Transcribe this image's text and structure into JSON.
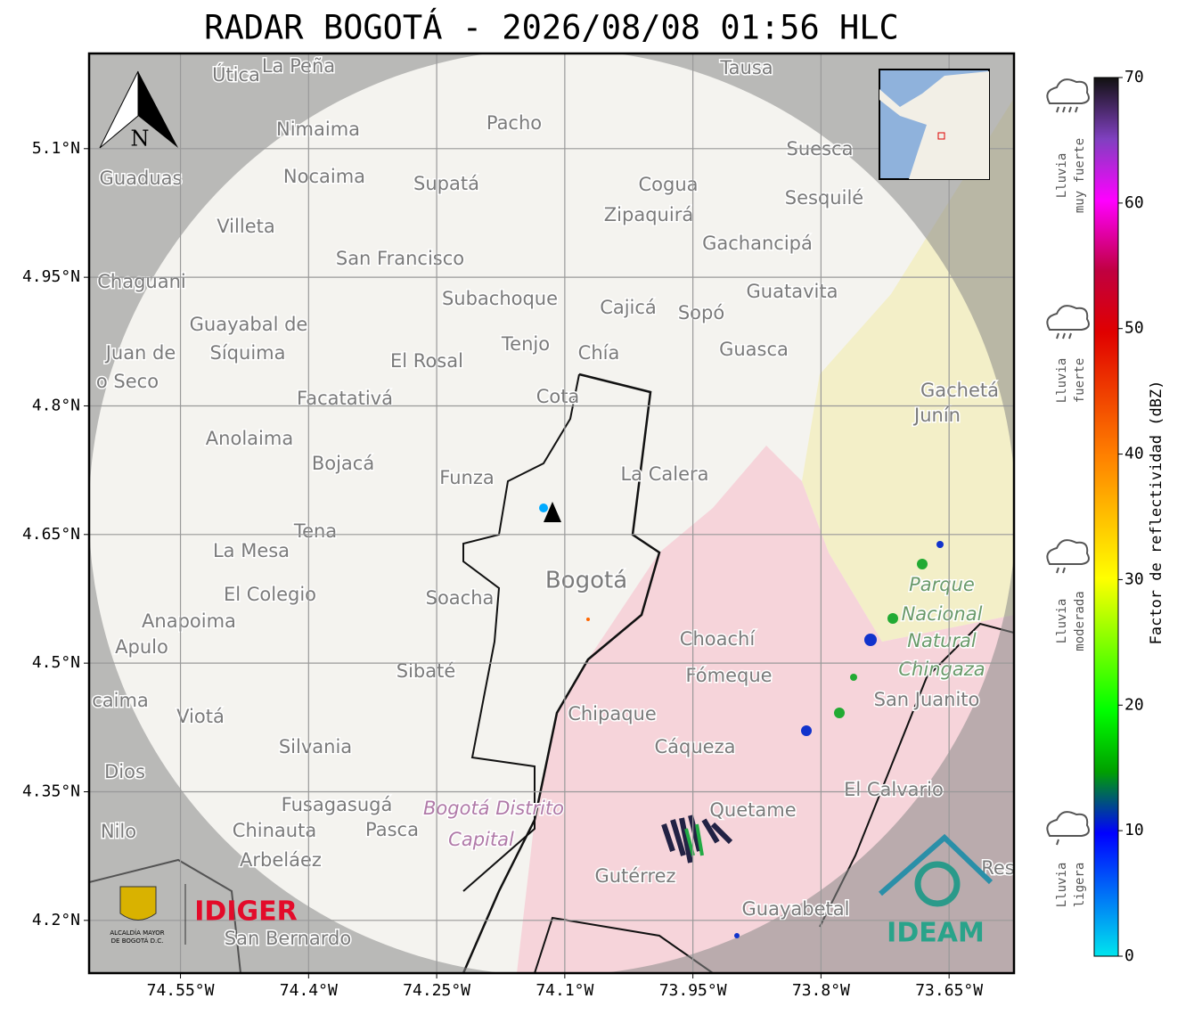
{
  "header": {
    "title": "RADAR BOGOTÁ - 2026/08/08 01:56 HLC"
  },
  "map": {
    "xlim": [
      -74.657,
      -73.574
    ],
    "ylim": [
      4.1385,
      5.211
    ],
    "xticks": [
      {
        "value": -74.55,
        "label": "74.55°W"
      },
      {
        "value": -74.4,
        "label": "74.4°W"
      },
      {
        "value": -74.25,
        "label": "74.25°W"
      },
      {
        "value": -74.1,
        "label": "74.1°W"
      },
      {
        "value": -73.95,
        "label": "73.95°W"
      },
      {
        "value": -73.8,
        "label": "73.8°W"
      },
      {
        "value": -73.65,
        "label": "73.65°W"
      }
    ],
    "yticks": [
      {
        "value": 5.1,
        "label": "5.1°N"
      },
      {
        "value": 4.95,
        "label": "4.95°N"
      },
      {
        "value": 4.8,
        "label": "4.8°N"
      },
      {
        "value": 4.65,
        "label": "4.65°N"
      },
      {
        "value": 4.5,
        "label": "4.5°N"
      },
      {
        "value": 4.35,
        "label": "4.35°N"
      },
      {
        "value": 4.2,
        "label": "4.2°N"
      }
    ],
    "grid": true,
    "north": "N",
    "places": [
      "Útica",
      "La Peña",
      "Tausa",
      "Pacho",
      "Nimaima",
      "Suesca",
      "Guaduas",
      "Nocaima",
      "Supatá",
      "Cogua",
      "Sesquilé",
      "Zipaquirá",
      "Villeta",
      "Gachancipá",
      "San Francisco",
      "Chaguani",
      "Guatavita",
      "Subachoque",
      "Cajicá",
      "Sopó",
      "Guayabal de",
      "Síquima",
      "Juan de",
      "Tenjo",
      "Chía",
      "Guasca",
      "El Rosal",
      "o Seco",
      "Gachetá",
      "Facatativá",
      "Cota",
      "Junín",
      "Anolaima",
      "Bojacá",
      "Funza",
      "La Calera",
      "Tena",
      "La Mesa",
      "Bogotá",
      "Parque",
      "El Colegio",
      "Soacha",
      "Nacional",
      "Anapoima",
      "Apulo",
      "Natural",
      "Choachí",
      "Chingaza",
      "Fómeque",
      "Sibaté",
      "caima",
      "San Juanito",
      "Viotá",
      "Chipaque",
      "Cáqueza",
      "Silvania",
      "Dios",
      "El Calvario",
      "Fusagasugá",
      "Bogotá Distrito",
      "Quetame",
      "Nilo",
      "Chinauta",
      "Pasca",
      "Capital",
      "Arbeláez",
      "Gutérrez",
      "Res",
      "Guayabetal",
      "San Bernardo"
    ]
  },
  "colorbar": {
    "label": "Factor de reflectividad (dBZ)",
    "lim": [
      0,
      70
    ],
    "ticks": [
      0,
      10,
      20,
      30,
      40,
      50,
      60,
      70
    ],
    "categories": [
      [
        "Lluvia",
        "muy fuerte"
      ],
      [
        "Lluvia",
        "fuerte"
      ],
      [
        "Lluvia",
        "moderada"
      ],
      [
        "Lluvia",
        "ligera"
      ]
    ]
  },
  "logos": {
    "alcaldia": [
      "ALCALDÍA MAYOR",
      "DE BOGOTÁ D.C."
    ],
    "idiger": "IDIGER",
    "ideam": "IDEAM"
  }
}
